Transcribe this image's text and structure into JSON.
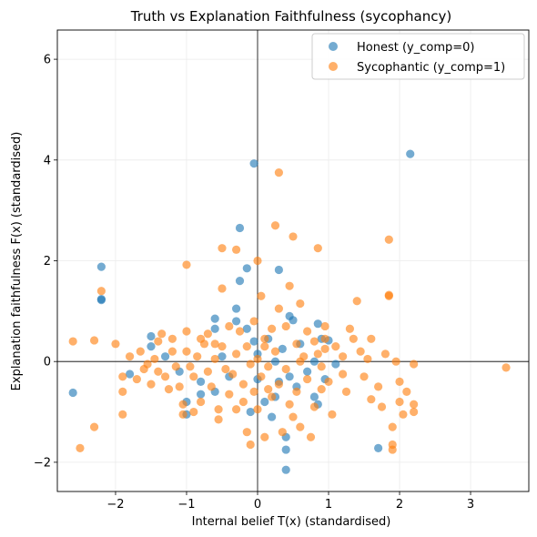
{
  "chart_data": {
    "type": "scatter",
    "title": "Truth vs Explanation Faithfulness (sycophancy)",
    "xlabel": "Internal belief T(x) (standardised)",
    "ylabel": "Explanation faithfulness F(x) (standardised)",
    "xlim": [
      -2.82,
      3.82
    ],
    "ylim": [
      -2.58,
      6.58
    ],
    "xticks": [
      -2,
      -1,
      0,
      1,
      2,
      3
    ],
    "yticks": [
      -2,
      0,
      2,
      4,
      6
    ],
    "grid": true,
    "reference_lines": {
      "x": 0,
      "y": 0
    },
    "legend_position": "top-right",
    "series": [
      {
        "name": "Honest (y_comp=0)",
        "color": "#1f77b4",
        "points": [
          [
            -2.6,
            -0.62
          ],
          [
            -2.2,
            1.88
          ],
          [
            -2.2,
            1.24
          ],
          [
            -1.8,
            -0.25
          ],
          [
            -1.5,
            0.5
          ],
          [
            -1.5,
            0.3
          ],
          [
            -1.3,
            0.1
          ],
          [
            -1.1,
            -0.2
          ],
          [
            -1.0,
            -1.05
          ],
          [
            -1.0,
            -0.8
          ],
          [
            -0.8,
            -0.4
          ],
          [
            -0.8,
            -0.65
          ],
          [
            -0.6,
            0.85
          ],
          [
            -0.6,
            0.65
          ],
          [
            -0.6,
            -0.6
          ],
          [
            -0.5,
            0.1
          ],
          [
            -0.4,
            -0.3
          ],
          [
            -0.3,
            1.05
          ],
          [
            -0.25,
            2.65
          ],
          [
            -0.25,
            1.6
          ],
          [
            -0.15,
            1.85
          ],
          [
            -0.15,
            0.65
          ],
          [
            -0.1,
            -1.0
          ],
          [
            -0.05,
            3.93
          ],
          [
            -0.05,
            0.4
          ],
          [
            0.0,
            -0.35
          ],
          [
            0.0,
            0.15
          ],
          [
            0.1,
            -0.8
          ],
          [
            0.15,
            0.45
          ],
          [
            0.2,
            -1.1
          ],
          [
            0.25,
            0.0
          ],
          [
            0.25,
            -0.7
          ],
          [
            0.3,
            1.82
          ],
          [
            0.3,
            -0.4
          ],
          [
            0.35,
            0.25
          ],
          [
            0.4,
            -2.15
          ],
          [
            0.4,
            -1.75
          ],
          [
            0.4,
            -1.5
          ],
          [
            0.45,
            0.9
          ],
          [
            0.45,
            -0.3
          ],
          [
            0.5,
            0.82
          ],
          [
            0.55,
            -0.5
          ],
          [
            0.6,
            0.35
          ],
          [
            0.7,
            -0.2
          ],
          [
            0.8,
            -0.7
          ],
          [
            0.8,
            0.0
          ],
          [
            0.85,
            0.75
          ],
          [
            0.85,
            -0.85
          ],
          [
            0.9,
            0.45
          ],
          [
            1.0,
            0.42
          ],
          [
            0.95,
            -0.35
          ],
          [
            1.1,
            -0.05
          ],
          [
            1.7,
            -1.72
          ],
          [
            2.15,
            4.12
          ],
          [
            -2.2,
            1.22
          ],
          [
            -0.3,
            0.8
          ]
        ]
      },
      {
        "name": "Sycophantic (y_comp=1)",
        "color": "#ff7f0e",
        "points": [
          [
            -2.6,
            0.4
          ],
          [
            -2.5,
            -1.72
          ],
          [
            -2.3,
            0.42
          ],
          [
            -2.3,
            -1.3
          ],
          [
            -2.2,
            1.4
          ],
          [
            -2.0,
            0.35
          ],
          [
            -1.9,
            -0.3
          ],
          [
            -1.9,
            -0.6
          ],
          [
            -1.9,
            -1.05
          ],
          [
            -1.8,
            0.1
          ],
          [
            -1.7,
            -0.35
          ],
          [
            -1.65,
            0.2
          ],
          [
            -1.6,
            -0.15
          ],
          [
            -1.55,
            -0.05
          ],
          [
            -1.5,
            -0.45
          ],
          [
            -1.45,
            0.05
          ],
          [
            -1.4,
            0.4
          ],
          [
            -1.4,
            -0.2
          ],
          [
            -1.35,
            0.55
          ],
          [
            -1.3,
            -0.3
          ],
          [
            -1.25,
            -0.55
          ],
          [
            -1.2,
            0.2
          ],
          [
            -1.15,
            -0.1
          ],
          [
            -1.1,
            -0.5
          ],
          [
            -1.05,
            -0.85
          ],
          [
            -1.0,
            1.92
          ],
          [
            -1.0,
            0.6
          ],
          [
            -1.0,
            0.2
          ],
          [
            -0.95,
            -0.1
          ],
          [
            -0.9,
            -0.3
          ],
          [
            -0.9,
            -1.0
          ],
          [
            -0.85,
            0.1
          ],
          [
            -0.8,
            -0.8
          ],
          [
            -0.75,
            0.35
          ],
          [
            -0.7,
            -0.2
          ],
          [
            -0.7,
            0.55
          ],
          [
            -0.65,
            -0.5
          ],
          [
            -0.6,
            0.05
          ],
          [
            -0.55,
            -0.95
          ],
          [
            -0.55,
            -1.15
          ],
          [
            -0.5,
            1.45
          ],
          [
            -0.5,
            0.3
          ],
          [
            -0.5,
            2.25
          ],
          [
            -0.45,
            -0.15
          ],
          [
            -0.4,
            0.7
          ],
          [
            -0.4,
            -0.65
          ],
          [
            -0.35,
            -0.25
          ],
          [
            -0.3,
            0.15
          ],
          [
            -0.3,
            2.22
          ],
          [
            -0.25,
            0.6
          ],
          [
            -0.2,
            -0.45
          ],
          [
            -0.2,
            -0.8
          ],
          [
            -0.15,
            0.3
          ],
          [
            -0.15,
            -1.4
          ],
          [
            -0.1,
            -0.05
          ],
          [
            -0.1,
            -1.65
          ],
          [
            -0.05,
            0.8
          ],
          [
            -0.05,
            -0.6
          ],
          [
            0.0,
            2.0
          ],
          [
            0.0,
            0.05
          ],
          [
            0.0,
            -0.95
          ],
          [
            0.05,
            1.3
          ],
          [
            0.05,
            -0.3
          ],
          [
            0.1,
            0.45
          ],
          [
            0.1,
            -1.5
          ],
          [
            0.15,
            -0.1
          ],
          [
            0.2,
            0.65
          ],
          [
            0.2,
            -0.7
          ],
          [
            0.25,
            2.7
          ],
          [
            0.25,
            0.2
          ],
          [
            0.3,
            3.75
          ],
          [
            0.3,
            1.05
          ],
          [
            0.3,
            -0.45
          ],
          [
            0.35,
            -1.4
          ],
          [
            0.4,
            0.7
          ],
          [
            0.4,
            -0.15
          ],
          [
            0.45,
            1.5
          ],
          [
            0.5,
            2.48
          ],
          [
            0.5,
            -1.1
          ],
          [
            0.55,
            0.35
          ],
          [
            0.55,
            -0.6
          ],
          [
            0.6,
            1.15
          ],
          [
            0.6,
            -1.3
          ],
          [
            0.65,
            0.1
          ],
          [
            0.7,
            0.6
          ],
          [
            0.7,
            -0.35
          ],
          [
            0.75,
            -1.5
          ],
          [
            0.8,
            0.4
          ],
          [
            0.8,
            -0.9
          ],
          [
            0.85,
            2.25
          ],
          [
            0.85,
            0.15
          ],
          [
            0.9,
            -0.1
          ],
          [
            0.9,
            -0.55
          ],
          [
            0.95,
            0.7
          ],
          [
            0.95,
            0.25
          ],
          [
            1.0,
            -0.4
          ],
          [
            1.05,
            -1.05
          ],
          [
            1.1,
            0.3
          ],
          [
            1.2,
            0.1
          ],
          [
            1.2,
            -0.25
          ],
          [
            1.25,
            -0.6
          ],
          [
            1.3,
            0.65
          ],
          [
            1.35,
            0.45
          ],
          [
            1.4,
            1.2
          ],
          [
            1.45,
            0.2
          ],
          [
            1.5,
            -0.3
          ],
          [
            1.55,
            0.05
          ],
          [
            1.6,
            0.45
          ],
          [
            1.6,
            -0.75
          ],
          [
            1.7,
            -0.5
          ],
          [
            1.75,
            -0.9
          ],
          [
            1.8,
            0.15
          ],
          [
            1.85,
            2.42
          ],
          [
            1.85,
            1.3
          ],
          [
            1.9,
            -1.3
          ],
          [
            1.9,
            -1.65
          ],
          [
            1.95,
            0.0
          ],
          [
            2.0,
            -0.4
          ],
          [
            2.0,
            -0.8
          ],
          [
            2.05,
            -1.05
          ],
          [
            2.1,
            -0.6
          ],
          [
            2.2,
            -0.05
          ],
          [
            2.2,
            -0.85
          ],
          [
            2.2,
            -1.0
          ],
          [
            3.5,
            -0.12
          ],
          [
            -1.2,
            0.45
          ],
          [
            -0.8,
            0.45
          ],
          [
            -0.6,
            0.35
          ],
          [
            -0.3,
            -0.95
          ],
          [
            0.1,
            0.3
          ],
          [
            0.6,
            0.0
          ],
          [
            0.95,
            0.45
          ],
          [
            1.85,
            1.32
          ],
          [
            1.9,
            -1.75
          ],
          [
            -1.05,
            -1.05
          ],
          [
            0.15,
            -0.55
          ],
          [
            0.45,
            -0.85
          ]
        ]
      }
    ]
  }
}
